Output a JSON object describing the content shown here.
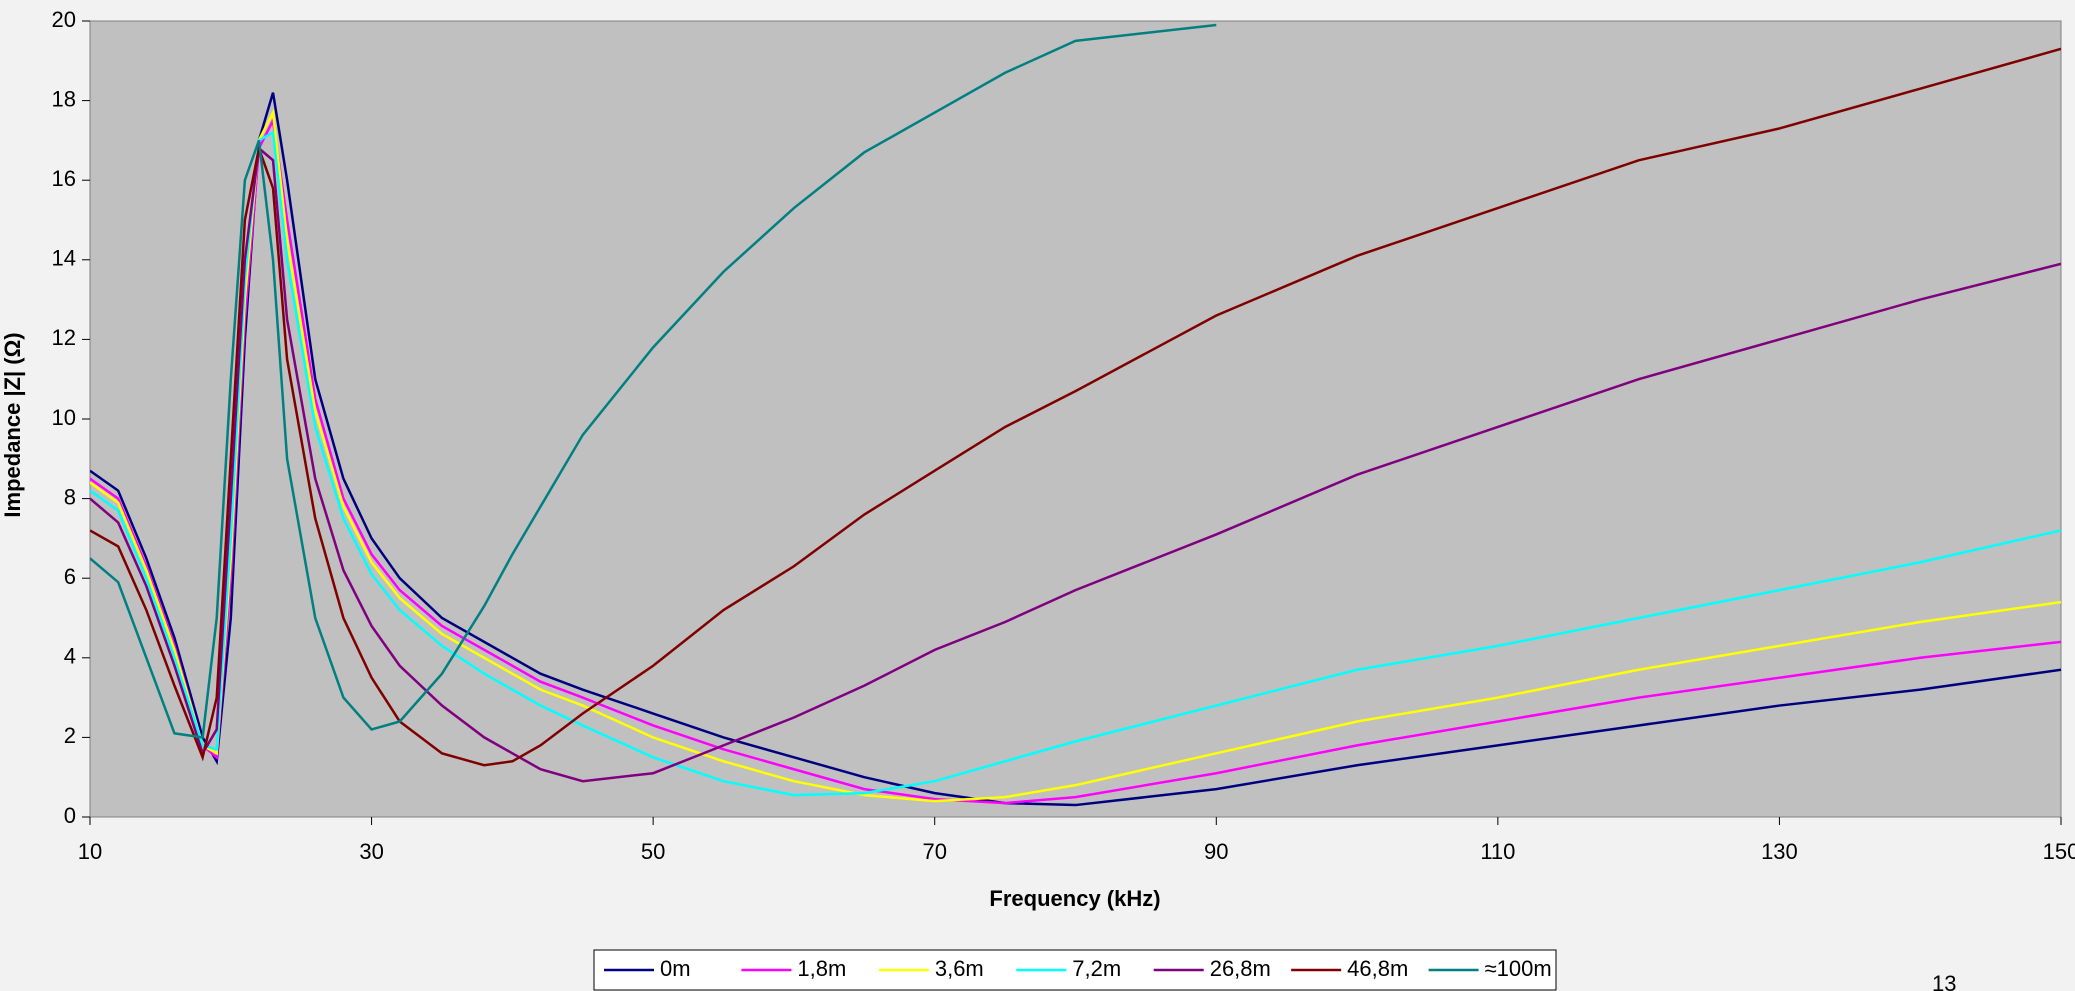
{
  "chart_data": {
    "type": "line",
    "xlabel": "Frequency (kHz)",
    "ylabel": "Impedance |Z| (Ω)",
    "x": [
      10,
      12,
      14,
      16,
      18,
      19,
      20,
      21,
      22,
      23,
      24,
      26,
      28,
      30,
      32,
      35,
      38,
      40,
      42,
      45,
      50,
      55,
      60,
      65,
      70,
      75,
      80,
      90,
      100,
      110,
      120,
      130,
      140,
      150
    ],
    "xlim": [
      10,
      150
    ],
    "xticks": [
      10,
      30,
      50,
      70,
      90,
      110,
      130,
      150
    ],
    "ylim": [
      0,
      20
    ],
    "yticks": [
      0,
      2,
      4,
      6,
      8,
      10,
      12,
      14,
      16,
      18,
      20
    ],
    "legend": "bottom",
    "series": [
      {
        "name": "0m",
        "color": "#000080",
        "values": [
          8.7,
          8.2,
          6.5,
          4.5,
          2,
          1.4,
          5,
          12,
          17,
          18.2,
          16,
          11,
          8.5,
          7,
          6,
          5,
          4.4,
          4.0,
          3.6,
          3.2,
          2.6,
          2.0,
          1.5,
          1.0,
          0.6,
          0.35,
          0.3,
          0.7,
          1.3,
          1.8,
          2.3,
          2.8,
          3.2,
          3.7
        ]
      },
      {
        "name": "1,8m",
        "color": "#ff00ff",
        "values": [
          8.5,
          8.0,
          6.3,
          4.3,
          1.8,
          1.5,
          6,
          12.5,
          16.8,
          17.5,
          15,
          10.5,
          8.0,
          6.6,
          5.7,
          4.8,
          4.2,
          3.8,
          3.4,
          3.0,
          2.3,
          1.7,
          1.2,
          0.7,
          0.45,
          0.35,
          0.5,
          1.1,
          1.8,
          2.4,
          3.0,
          3.5,
          4.0,
          4.4
        ]
      },
      {
        "name": "3,6m",
        "color": "#ffff00",
        "values": [
          8.4,
          7.9,
          6.2,
          4.2,
          1.8,
          1.6,
          6.5,
          13,
          17,
          17.7,
          14.5,
          10.2,
          7.8,
          6.4,
          5.5,
          4.6,
          4.0,
          3.6,
          3.2,
          2.8,
          2.0,
          1.4,
          0.9,
          0.55,
          0.4,
          0.5,
          0.8,
          1.6,
          2.4,
          3.0,
          3.7,
          4.3,
          4.9,
          5.4
        ]
      },
      {
        "name": "7,2m",
        "color": "#00ffff",
        "values": [
          8.2,
          7.7,
          6.0,
          4.0,
          1.8,
          1.7,
          7,
          13.5,
          17,
          17.2,
          14,
          9.8,
          7.5,
          6.1,
          5.2,
          4.3,
          3.6,
          3.2,
          2.8,
          2.3,
          1.5,
          0.9,
          0.55,
          0.6,
          0.9,
          1.4,
          1.9,
          2.8,
          3.7,
          4.3,
          5.0,
          5.7,
          6.4,
          7.2
        ]
      },
      {
        "name": "26,8m",
        "color": "#800080",
        "values": [
          8.0,
          7.4,
          5.8,
          3.8,
          1.6,
          2.2,
          8,
          14,
          16.8,
          16.5,
          12.5,
          8.5,
          6.2,
          4.8,
          3.8,
          2.8,
          2.0,
          1.6,
          1.2,
          0.9,
          1.1,
          1.8,
          2.5,
          3.3,
          4.2,
          4.9,
          5.7,
          7.1,
          8.6,
          9.8,
          11.0,
          12.0,
          13.0,
          13.9
        ]
      },
      {
        "name": "46,8m",
        "color": "#800000",
        "values": [
          7.2,
          6.8,
          5.2,
          3.3,
          1.5,
          3,
          9,
          15,
          16.8,
          15.8,
          11.5,
          7.5,
          5.0,
          3.5,
          2.4,
          1.6,
          1.3,
          1.4,
          1.8,
          2.6,
          3.8,
          5.2,
          6.3,
          7.6,
          8.7,
          9.8,
          10.7,
          12.6,
          14.1,
          15.3,
          16.5,
          17.3,
          18.3,
          19.3
        ]
      },
      {
        "name": "≈100m",
        "color": "#008080",
        "values": [
          6.5,
          5.9,
          4.0,
          2.1,
          2.0,
          5,
          11,
          16,
          17,
          14,
          9,
          5,
          3,
          2.2,
          2.4,
          3.6,
          5.3,
          6.6,
          7.8,
          9.6,
          11.8,
          13.7,
          15.3,
          16.7,
          17.7,
          18.7,
          19.5,
          19.9,
          null,
          null,
          null,
          null,
          null,
          null
        ]
      }
    ]
  },
  "page_number": "13"
}
